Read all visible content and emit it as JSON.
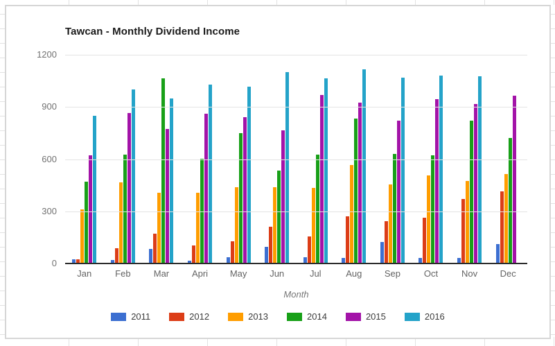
{
  "chart_data": {
    "type": "bar",
    "title": "Tawcan - Monthly Dividend Income",
    "xlabel": "Month",
    "ylabel": "",
    "ylim": [
      0,
      1200
    ],
    "y_ticks": [
      0,
      300,
      600,
      900,
      1200
    ],
    "grid": true,
    "legend_position": "bottom",
    "categories": [
      "Jan",
      "Feb",
      "Mar",
      "Apri",
      "May",
      "Jun",
      "Jul",
      "Aug",
      "Sep",
      "Oct",
      "Nov",
      "Dec"
    ],
    "series": [
      {
        "name": "2011",
        "color": "#3C6FD1",
        "values": [
          25,
          20,
          85,
          16,
          35,
          95,
          35,
          33,
          122,
          32,
          33,
          110
        ]
      },
      {
        "name": "2012",
        "color": "#DC3D17",
        "values": [
          22,
          88,
          170,
          105,
          128,
          210,
          155,
          270,
          245,
          265,
          370,
          415
        ]
      },
      {
        "name": "2013",
        "color": "#FF9D00",
        "values": [
          310,
          465,
          405,
          405,
          440,
          440,
          435,
          565,
          455,
          505,
          475,
          515
        ]
      },
      {
        "name": "2014",
        "color": "#18A018",
        "values": [
          470,
          625,
          1065,
          600,
          750,
          535,
          625,
          835,
          630,
          620,
          820,
          720
        ]
      },
      {
        "name": "2015",
        "color": "#A313A8",
        "values": [
          620,
          865,
          775,
          860,
          840,
          765,
          970,
          925,
          820,
          945,
          915,
          965
        ]
      },
      {
        "name": "2016",
        "color": "#24A3C9",
        "values": [
          850,
          1000,
          950,
          1030,
          1015,
          1100,
          1065,
          1115,
          1070,
          1080,
          1075,
          null
        ]
      }
    ]
  }
}
